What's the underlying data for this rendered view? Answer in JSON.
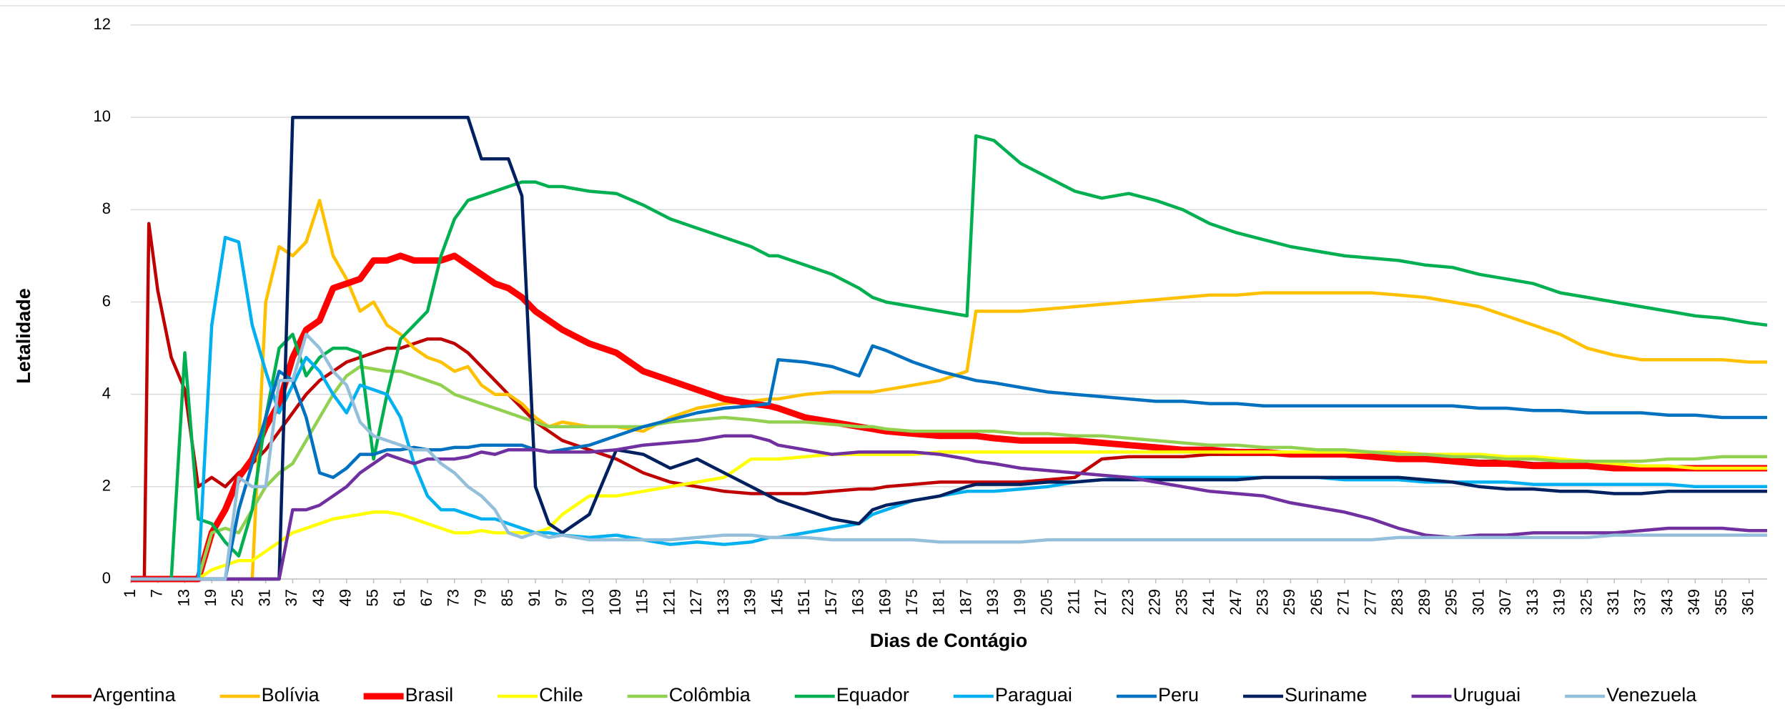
{
  "chart_data": {
    "type": "line",
    "xlabel": "Dias de Contágio",
    "ylabel": "Letalidade",
    "x": [
      1,
      4,
      5,
      7,
      10,
      13,
      16,
      19,
      22,
      25,
      28,
      31,
      34,
      37,
      40,
      43,
      46,
      49,
      52,
      55,
      58,
      61,
      64,
      67,
      70,
      73,
      76,
      79,
      82,
      85,
      88,
      91,
      94,
      97,
      103,
      109,
      115,
      121,
      127,
      133,
      139,
      143,
      145,
      151,
      157,
      163,
      166,
      169,
      175,
      181,
      187,
      189,
      193,
      199,
      205,
      211,
      217,
      223,
      229,
      235,
      241,
      247,
      253,
      259,
      265,
      271,
      277,
      283,
      289,
      295,
      301,
      307,
      313,
      319,
      325,
      331,
      337,
      343,
      349,
      355,
      361,
      365
    ],
    "xlim": [
      1,
      365
    ],
    "xticks": [
      1,
      7,
      13,
      19,
      25,
      31,
      37,
      43,
      49,
      55,
      61,
      67,
      73,
      79,
      85,
      91,
      97,
      103,
      109,
      115,
      121,
      127,
      133,
      139,
      145,
      151,
      157,
      163,
      169,
      175,
      181,
      187,
      193,
      199,
      205,
      211,
      217,
      223,
      229,
      235,
      241,
      247,
      253,
      259,
      265,
      271,
      277,
      283,
      289,
      295,
      301,
      307,
      313,
      319,
      325,
      331,
      337,
      343,
      349,
      355,
      361
    ],
    "ylim": [
      0,
      12
    ],
    "yticks": [
      0,
      2,
      4,
      6,
      8,
      10,
      12
    ],
    "grid": true,
    "legend": "bottom",
    "series": [
      {
        "name": "Argentina",
        "color": "#c00000",
        "values": [
          0,
          0,
          7.7,
          6.25,
          4.8,
          4.1,
          2.0,
          2.2,
          2.0,
          2.3,
          2.5,
          2.8,
          3.2,
          3.6,
          4.0,
          4.3,
          4.5,
          4.7,
          4.8,
          4.9,
          5.0,
          5.0,
          5.1,
          5.2,
          5.2,
          5.1,
          4.9,
          4.6,
          4.3,
          4.0,
          3.7,
          3.4,
          3.2,
          3.0,
          2.8,
          2.6,
          2.3,
          2.1,
          2.0,
          1.9,
          1.85,
          1.85,
          1.85,
          1.85,
          1.9,
          1.95,
          1.95,
          2.0,
          2.05,
          2.1,
          2.1,
          2.1,
          2.1,
          2.1,
          2.15,
          2.2,
          2.6,
          2.65,
          2.65,
          2.65,
          2.7,
          2.7,
          2.7,
          2.7,
          2.7,
          2.7,
          2.7,
          2.65,
          2.6,
          2.6,
          2.55,
          2.55,
          2.5,
          2.5,
          2.45,
          2.45,
          2.45,
          2.4,
          2.4,
          2.4,
          2.4,
          2.4
        ]
      },
      {
        "name": "Bolívia",
        "color": "#ffc000",
        "values": [
          0,
          0,
          0,
          0,
          0,
          0,
          0,
          0,
          0,
          0,
          0,
          6.0,
          7.2,
          7.0,
          7.3,
          8.2,
          7.0,
          6.5,
          5.8,
          6.0,
          5.5,
          5.3,
          5.0,
          4.8,
          4.7,
          4.5,
          4.6,
          4.2,
          4.0,
          4.0,
          3.8,
          3.5,
          3.3,
          3.4,
          3.3,
          3.3,
          3.2,
          3.5,
          3.7,
          3.8,
          3.85,
          3.9,
          3.9,
          4.0,
          4.05,
          4.05,
          4.05,
          4.1,
          4.2,
          4.3,
          4.5,
          5.8,
          5.8,
          5.8,
          5.85,
          5.9,
          5.95,
          6.0,
          6.05,
          6.1,
          6.15,
          6.15,
          6.2,
          6.2,
          6.2,
          6.2,
          6.2,
          6.15,
          6.1,
          6.0,
          5.9,
          5.7,
          5.5,
          5.3,
          5.0,
          4.85,
          4.75,
          4.75,
          4.75,
          4.75,
          4.7,
          4.7
        ]
      },
      {
        "name": "Brasil",
        "color": "#ff0000",
        "values": [
          0,
          0,
          0,
          0,
          0,
          0,
          0,
          1.0,
          1.5,
          2.2,
          2.6,
          3.3,
          3.8,
          4.8,
          5.4,
          5.6,
          6.3,
          6.4,
          6.5,
          6.9,
          6.9,
          7.0,
          6.9,
          6.9,
          6.9,
          7.0,
          6.8,
          6.6,
          6.4,
          6.3,
          6.1,
          5.8,
          5.6,
          5.4,
          5.1,
          4.9,
          4.5,
          4.3,
          4.1,
          3.9,
          3.8,
          3.75,
          3.7,
          3.5,
          3.4,
          3.3,
          3.25,
          3.2,
          3.15,
          3.1,
          3.1,
          3.1,
          3.05,
          3.0,
          3.0,
          3.0,
          2.95,
          2.9,
          2.85,
          2.8,
          2.8,
          2.75,
          2.75,
          2.7,
          2.7,
          2.7,
          2.65,
          2.6,
          2.6,
          2.55,
          2.5,
          2.5,
          2.45,
          2.45,
          2.45,
          2.4,
          2.4,
          2.4,
          2.4,
          2.4,
          2.4,
          2.4
        ]
      },
      {
        "name": "Chile",
        "color": "#ffff00",
        "values": [
          0,
          0,
          0,
          0,
          0,
          0,
          0,
          0.2,
          0.3,
          0.4,
          0.4,
          0.6,
          0.8,
          1.0,
          1.1,
          1.2,
          1.3,
          1.35,
          1.4,
          1.45,
          1.45,
          1.4,
          1.3,
          1.2,
          1.1,
          1.0,
          1.0,
          1.05,
          1.0,
          1.0,
          1.0,
          1.0,
          1.1,
          1.4,
          1.8,
          1.8,
          1.9,
          2.0,
          2.1,
          2.2,
          2.6,
          2.6,
          2.6,
          2.65,
          2.7,
          2.7,
          2.7,
          2.7,
          2.7,
          2.75,
          2.75,
          2.75,
          2.75,
          2.75,
          2.75,
          2.75,
          2.75,
          2.75,
          2.75,
          2.75,
          2.75,
          2.75,
          2.75,
          2.75,
          2.75,
          2.75,
          2.75,
          2.75,
          2.7,
          2.7,
          2.7,
          2.65,
          2.65,
          2.6,
          2.55,
          2.5,
          2.45,
          2.45,
          2.4,
          2.4,
          2.4,
          2.4
        ]
      },
      {
        "name": "Colômbia",
        "color": "#92d050",
        "values": [
          0,
          0,
          0,
          0,
          0,
          0,
          0,
          1.0,
          1.1,
          1.0,
          1.5,
          2.0,
          2.3,
          2.5,
          3.0,
          3.5,
          4.0,
          4.4,
          4.6,
          4.55,
          4.5,
          4.5,
          4.4,
          4.3,
          4.2,
          4.0,
          3.9,
          3.8,
          3.7,
          3.6,
          3.5,
          3.4,
          3.3,
          3.3,
          3.3,
          3.3,
          3.3,
          3.4,
          3.45,
          3.5,
          3.45,
          3.4,
          3.4,
          3.4,
          3.35,
          3.3,
          3.3,
          3.25,
          3.2,
          3.2,
          3.2,
          3.2,
          3.2,
          3.15,
          3.15,
          3.1,
          3.1,
          3.05,
          3.0,
          2.95,
          2.9,
          2.9,
          2.85,
          2.85,
          2.8,
          2.8,
          2.75,
          2.7,
          2.7,
          2.65,
          2.65,
          2.6,
          2.6,
          2.55,
          2.55,
          2.55,
          2.55,
          2.6,
          2.6,
          2.65,
          2.65,
          2.65
        ]
      },
      {
        "name": "Equador",
        "color": "#00b050",
        "values": [
          0,
          0,
          0,
          0,
          0,
          4.9,
          1.3,
          1.2,
          0.8,
          0.5,
          1.5,
          3.5,
          5.0,
          5.3,
          4.4,
          4.8,
          5.0,
          5.0,
          4.9,
          2.6,
          4.0,
          5.2,
          5.5,
          5.8,
          7.0,
          7.8,
          8.2,
          8.3,
          8.4,
          8.5,
          8.6,
          8.6,
          8.5,
          8.5,
          8.4,
          8.35,
          8.1,
          7.8,
          7.6,
          7.4,
          7.2,
          7.0,
          7.0,
          6.8,
          6.6,
          6.3,
          6.1,
          6.0,
          5.9,
          5.8,
          5.7,
          9.6,
          9.5,
          9.0,
          8.7,
          8.4,
          8.25,
          8.35,
          8.2,
          8.0,
          7.7,
          7.5,
          7.35,
          7.2,
          7.1,
          7.0,
          6.95,
          6.9,
          6.8,
          6.75,
          6.6,
          6.5,
          6.4,
          6.2,
          6.1,
          6.0,
          5.9,
          5.8,
          5.7,
          5.65,
          5.55,
          5.5
        ]
      },
      {
        "name": "Paraguai",
        "color": "#00b0f0",
        "values": [
          0,
          0,
          0,
          0,
          0,
          0,
          0,
          5.5,
          7.4,
          7.3,
          5.5,
          4.5,
          3.6,
          4.2,
          4.8,
          4.5,
          4.0,
          3.6,
          4.2,
          4.1,
          4.0,
          3.5,
          2.5,
          1.8,
          1.5,
          1.5,
          1.4,
          1.3,
          1.3,
          1.2,
          1.1,
          1.0,
          1.0,
          0.95,
          0.9,
          0.95,
          0.85,
          0.75,
          0.8,
          0.75,
          0.8,
          0.9,
          0.9,
          1.0,
          1.1,
          1.2,
          1.4,
          1.5,
          1.7,
          1.8,
          1.9,
          1.9,
          1.9,
          1.95,
          2.0,
          2.1,
          2.15,
          2.2,
          2.2,
          2.2,
          2.2,
          2.2,
          2.2,
          2.2,
          2.2,
          2.15,
          2.15,
          2.15,
          2.1,
          2.1,
          2.1,
          2.1,
          2.05,
          2.05,
          2.05,
          2.05,
          2.05,
          2.05,
          2.0,
          2.0,
          2.0,
          2.0
        ]
      },
      {
        "name": "Peru",
        "color": "#0070c0",
        "values": [
          0,
          0,
          0,
          0,
          0,
          0,
          0,
          0,
          0,
          1.5,
          2.5,
          3.5,
          4.5,
          4.3,
          3.5,
          2.3,
          2.2,
          2.4,
          2.7,
          2.7,
          2.8,
          2.8,
          2.85,
          2.8,
          2.8,
          2.85,
          2.85,
          2.9,
          2.9,
          2.9,
          2.9,
          2.8,
          2.75,
          2.8,
          2.9,
          3.1,
          3.3,
          3.45,
          3.6,
          3.7,
          3.75,
          3.8,
          4.75,
          4.7,
          4.6,
          4.4,
          5.05,
          4.95,
          4.7,
          4.5,
          4.35,
          4.3,
          4.25,
          4.15,
          4.05,
          4.0,
          3.95,
          3.9,
          3.85,
          3.85,
          3.8,
          3.8,
          3.75,
          3.75,
          3.75,
          3.75,
          3.75,
          3.75,
          3.75,
          3.75,
          3.7,
          3.7,
          3.65,
          3.65,
          3.6,
          3.6,
          3.6,
          3.55,
          3.55,
          3.5,
          3.5,
          3.5
        ]
      },
      {
        "name": "Suriname",
        "color": "#002060",
        "values": [
          0,
          0,
          0,
          0,
          0,
          0,
          0,
          0,
          0,
          0,
          0,
          0,
          0,
          10,
          10,
          10,
          10,
          10,
          10,
          10,
          10,
          10,
          10,
          10,
          10,
          10,
          10,
          9.1,
          9.1,
          9.1,
          8.3,
          2.0,
          1.2,
          1.0,
          1.4,
          2.8,
          2.7,
          2.4,
          2.6,
          2.3,
          2.0,
          1.8,
          1.7,
          1.5,
          1.3,
          1.2,
          1.5,
          1.6,
          1.7,
          1.8,
          2.0,
          2.05,
          2.05,
          2.05,
          2.1,
          2.1,
          2.15,
          2.15,
          2.15,
          2.15,
          2.15,
          2.15,
          2.2,
          2.2,
          2.2,
          2.2,
          2.2,
          2.2,
          2.15,
          2.1,
          2.0,
          1.95,
          1.95,
          1.9,
          1.9,
          1.85,
          1.85,
          1.9,
          1.9,
          1.9,
          1.9,
          1.9
        ]
      },
      {
        "name": "Uruguai",
        "color": "#7030a0",
        "values": [
          0,
          0,
          0,
          0,
          0,
          0,
          0,
          0,
          0,
          0,
          0,
          0,
          0,
          1.5,
          1.5,
          1.6,
          1.8,
          2.0,
          2.3,
          2.5,
          2.7,
          2.6,
          2.5,
          2.6,
          2.6,
          2.6,
          2.65,
          2.75,
          2.7,
          2.8,
          2.8,
          2.8,
          2.75,
          2.75,
          2.75,
          2.8,
          2.9,
          2.95,
          3.0,
          3.1,
          3.1,
          3.0,
          2.9,
          2.8,
          2.7,
          2.75,
          2.75,
          2.75,
          2.75,
          2.7,
          2.6,
          2.55,
          2.5,
          2.4,
          2.35,
          2.3,
          2.25,
          2.2,
          2.1,
          2.0,
          1.9,
          1.85,
          1.8,
          1.65,
          1.55,
          1.45,
          1.3,
          1.1,
          0.95,
          0.9,
          0.95,
          0.95,
          1.0,
          1.0,
          1.0,
          1.0,
          1.05,
          1.1,
          1.1,
          1.1,
          1.05,
          1.05
        ]
      },
      {
        "name": "Venezuela",
        "color": "#93bfdb",
        "values": [
          0,
          0,
          0,
          0,
          0,
          0,
          0,
          0,
          0,
          2.2,
          2.0,
          2.0,
          4.3,
          4.3,
          5.3,
          5.0,
          4.5,
          4.2,
          3.4,
          3.1,
          3.0,
          2.9,
          2.8,
          2.8,
          2.5,
          2.3,
          2.0,
          1.8,
          1.5,
          1.0,
          0.9,
          1.0,
          0.9,
          0.95,
          0.85,
          0.85,
          0.85,
          0.85,
          0.9,
          0.95,
          0.95,
          0.9,
          0.9,
          0.9,
          0.85,
          0.85,
          0.85,
          0.85,
          0.85,
          0.8,
          0.8,
          0.8,
          0.8,
          0.8,
          0.85,
          0.85,
          0.85,
          0.85,
          0.85,
          0.85,
          0.85,
          0.85,
          0.85,
          0.85,
          0.85,
          0.85,
          0.85,
          0.9,
          0.9,
          0.9,
          0.9,
          0.9,
          0.9,
          0.9,
          0.9,
          0.95,
          0.95,
          0.95,
          0.95,
          0.95,
          0.95,
          0.95
        ]
      }
    ]
  }
}
